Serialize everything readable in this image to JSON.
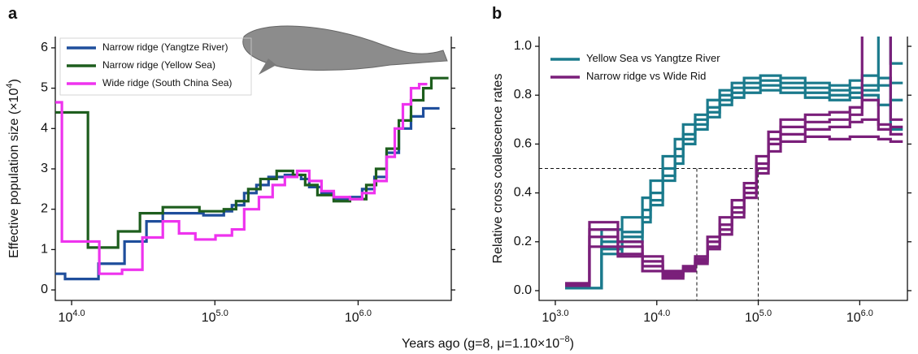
{
  "figure": {
    "xlabel": "Years ago (g=8, μ=1.10×10^{−8})"
  },
  "chart_data": [
    {
      "type": "line",
      "panel_label": "a",
      "ylabel": "Effective population size (×10^{4})",
      "log_x": true,
      "step": true,
      "legend": "upper left",
      "xlim": [
        7690,
        4470000
      ],
      "ylim": [
        -0.26,
        6.28
      ],
      "xticks": [
        {
          "value": 10000,
          "label": "10^{4.0}"
        },
        {
          "value": 100000,
          "label": "10^{5.0}"
        },
        {
          "value": 1000000,
          "label": "10^{6.0}"
        }
      ],
      "yticks": [
        0,
        1,
        2,
        3,
        4,
        5,
        6
      ],
      "series": [
        {
          "name": "Narrow ridge (Yangtze River)",
          "color": "#1f4e9c",
          "x": [
            7700,
            9000,
            15400,
            23400,
            33300,
            43300,
            83200,
            115500,
            131600,
            160200,
            195000,
            237000,
            308000,
            400000,
            456000,
            555000,
            676000,
            877000,
            1067000,
            1300000,
            1581000,
            1925000,
            2340000,
            2850000,
            3700000
          ],
          "values": [
            0.4,
            0.27,
            0.65,
            1.2,
            1.7,
            1.9,
            1.85,
            1.95,
            2.1,
            2.4,
            2.6,
            2.8,
            2.85,
            2.75,
            2.55,
            2.4,
            2.25,
            2.3,
            2.5,
            2.8,
            3.4,
            4.0,
            4.3,
            4.5,
            4.5
          ]
        },
        {
          "name": "Narrow ridge (Yellow Sea)",
          "color": "#1e5e1e",
          "x": [
            7700,
            13000,
            21100,
            30000,
            43300,
            78000,
            115500,
            140600,
            171000,
            208000,
            270000,
            351000,
            427000,
            520000,
            676000,
            877000,
            1140000,
            1334000,
            1581000,
            1925000,
            2340000,
            2850000,
            3245000,
            4275000
          ],
          "values": [
            4.4,
            1.05,
            1.45,
            1.9,
            2.05,
            1.95,
            2.0,
            2.2,
            2.5,
            2.75,
            2.95,
            2.85,
            2.6,
            2.35,
            2.2,
            2.25,
            2.6,
            3.0,
            3.5,
            4.2,
            4.7,
            5.0,
            5.25,
            5.25
          ]
        },
        {
          "name": "Wide ridge (South China Sea)",
          "color": "#ee33ee",
          "x": [
            7700,
            8550,
            15600,
            22500,
            31200,
            43300,
            56200,
            73100,
            101000,
            131600,
            160200,
            203000,
            253000,
            308000,
            375000,
            456000,
            555000,
            676000,
            877000,
            1067000,
            1300000,
            1581000,
            1803000,
            2054000,
            2340000,
            2668000,
            3040000
          ],
          "values": [
            4.65,
            1.2,
            0.4,
            0.5,
            1.3,
            1.7,
            1.4,
            1.25,
            1.35,
            1.5,
            2.0,
            2.3,
            2.6,
            2.8,
            2.95,
            2.7,
            2.45,
            2.3,
            2.25,
            2.4,
            2.7,
            3.3,
            4.0,
            4.6,
            5.0,
            5.1,
            5.1
          ]
        }
      ]
    },
    {
      "type": "line",
      "panel_label": "b",
      "ylabel": "Relative cross coalescence rates",
      "log_x": true,
      "step": true,
      "legend": "upper left",
      "xlim": [
        692,
        2950000
      ],
      "ylim": [
        -0.04,
        1.04
      ],
      "xticks": [
        {
          "value": 1000,
          "label": "10^{3.0}"
        },
        {
          "value": 10000,
          "label": "10^{4.0}"
        },
        {
          "value": 100000,
          "label": "10^{5.0}"
        },
        {
          "value": 1000000,
          "label": "10^{6.0}"
        }
      ],
      "yticks": [
        {
          "value": 0,
          "label": "0.0"
        },
        0.2,
        0.4,
        0.6,
        0.8,
        {
          "value": 1,
          "label": "1.0"
        }
      ],
      "reference_lines": {
        "y": 0.5,
        "x": [
          24800,
          100000
        ]
      },
      "series": [
        {
          "name": "Yellow Sea vs Yangtze River",
          "color": "#1a7a8c",
          "x": [
            1250,
            2860,
            4550,
            7220,
            8680,
            11450,
            15100,
            18200,
            23900,
            31600,
            41700,
            55000,
            72500,
            105000,
            166000,
            290000,
            504000,
            800000,
            1055000,
            1527000,
            2013000,
            2654000
          ],
          "replicates": [
            [
              0.01,
              0.25,
              0.3,
              0.38,
              0.45,
              0.55,
              0.62,
              0.68,
              0.72,
              0.78,
              0.82,
              0.85,
              0.87,
              0.88,
              0.87,
              0.85,
              0.84,
              0.86,
              0.88,
              1.05,
              0.93,
              0.93
            ],
            [
              0.01,
              0.2,
              0.24,
              0.33,
              0.4,
              0.5,
              0.58,
              0.64,
              0.7,
              0.75,
              0.8,
              0.83,
              0.85,
              0.86,
              0.85,
              0.83,
              0.82,
              0.83,
              0.84,
              0.87,
              0.85,
              0.85
            ],
            [
              0.01,
              0.17,
              0.22,
              0.3,
              0.37,
              0.47,
              0.55,
              0.62,
              0.68,
              0.73,
              0.78,
              0.81,
              0.83,
              0.84,
              0.83,
              0.81,
              0.8,
              0.81,
              0.82,
              0.84,
              0.66,
              0.66
            ],
            [
              0.01,
              0.15,
              0.2,
              0.28,
              0.35,
              0.45,
              0.52,
              0.6,
              0.66,
              0.71,
              0.76,
              0.79,
              0.81,
              0.82,
              0.81,
              0.79,
              0.78,
              0.79,
              0.8,
              0.76,
              0.78,
              0.78
            ]
          ]
        },
        {
          "name": "Narrow ridge vs Wide Rid",
          "color": "#7a1f7a",
          "x": [
            1250,
            2170,
            4140,
            7220,
            11450,
            18200,
            23900,
            31600,
            41700,
            55000,
            72500,
            95700,
            126000,
            166000,
            290000,
            504000,
            800000,
            1055000,
            1527000,
            2013000,
            2654000
          ],
          "replicates": [
            [
              0.03,
              0.28,
              0.15,
              0.08,
              0.07,
              0.1,
              0.14,
              0.22,
              0.3,
              0.37,
              0.44,
              0.55,
              0.65,
              0.7,
              0.72,
              0.73,
              0.75,
              1.05,
              1.05,
              0.7,
              0.7
            ],
            [
              0.03,
              0.25,
              0.2,
              0.12,
              0.06,
              0.09,
              0.13,
              0.2,
              0.27,
              0.34,
              0.42,
              0.52,
              0.62,
              0.67,
              0.69,
              0.7,
              0.72,
              0.78,
              0.68,
              0.67,
              0.67
            ],
            [
              0.02,
              0.22,
              0.18,
              0.14,
              0.08,
              0.08,
              0.12,
              0.18,
              0.25,
              0.32,
              0.4,
              0.5,
              0.6,
              0.64,
              0.66,
              0.67,
              0.69,
              0.7,
              0.66,
              0.64,
              0.64
            ],
            [
              0.02,
              0.18,
              0.14,
              0.1,
              0.05,
              0.08,
              0.11,
              0.17,
              0.23,
              0.3,
              0.38,
              0.48,
              0.57,
              0.61,
              0.63,
              0.62,
              0.63,
              0.63,
              0.62,
              0.61,
              0.61
            ]
          ]
        }
      ]
    }
  ]
}
